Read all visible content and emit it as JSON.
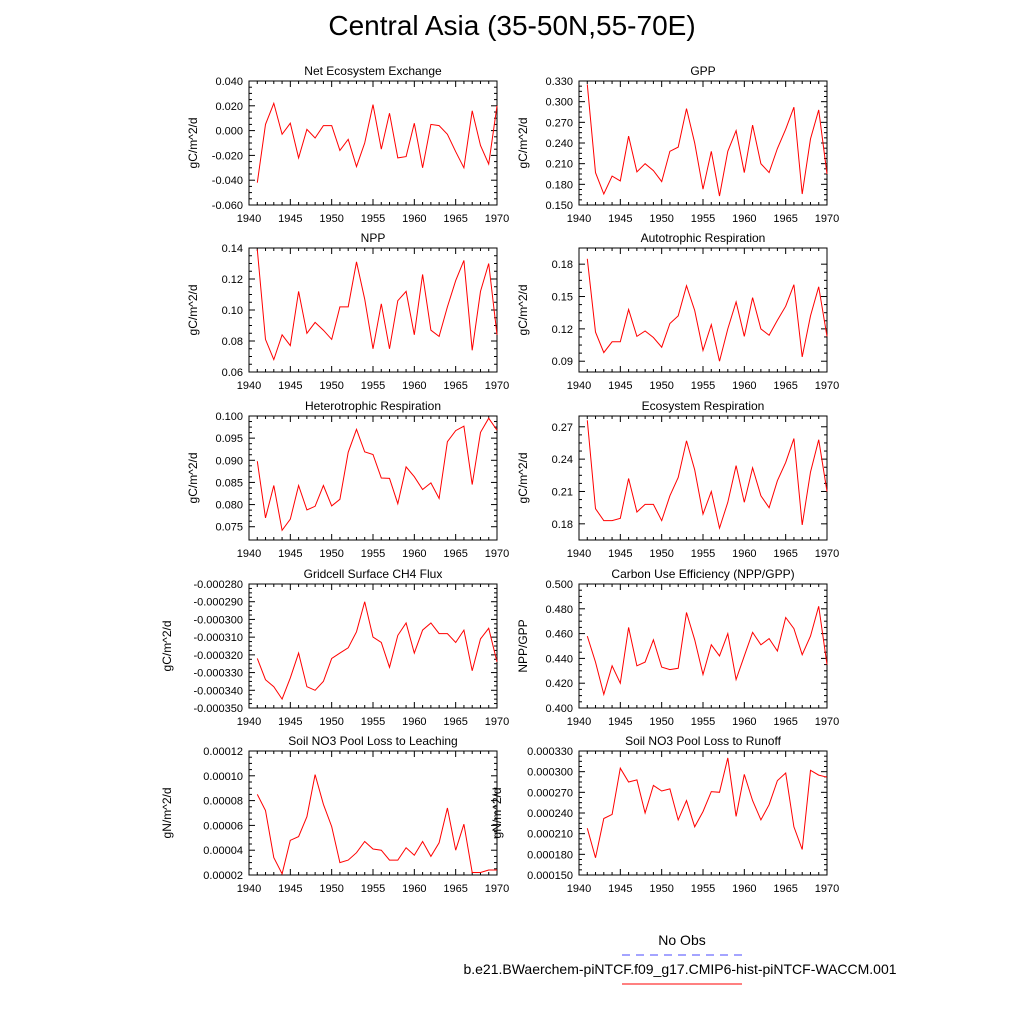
{
  "page_title": "Central Asia (35-50N,55-70E)",
  "legend": {
    "no_obs_label": "No Obs",
    "case_label": "b.e21.BWaerchem-piNTCF.f09_g17.CMIP6-hist-piNTCF-WACCM.001",
    "no_obs_color": "#4a4aff",
    "case_color": "#ff0000"
  },
  "chart_data": [
    {
      "type": "line",
      "title": "Net Ecosystem Exchange",
      "ylabel": "gC/m^2/d",
      "xlim": [
        1940,
        1970
      ],
      "ylim": [
        -0.06,
        0.04
      ],
      "xticks": [
        1940,
        1945,
        1950,
        1955,
        1960,
        1965,
        1970
      ],
      "yticks": [
        -0.06,
        -0.04,
        -0.02,
        0.0,
        0.02,
        0.04
      ],
      "ytick_labels": [
        "-0.060",
        "-0.040",
        "-0.020",
        "0.000",
        "0.020",
        "0.040"
      ],
      "series": [
        {
          "color": "#ff0000",
          "x": [
            1941,
            1942,
            1943,
            1944,
            1945,
            1946,
            1947,
            1948,
            1949,
            1950,
            1951,
            1952,
            1953,
            1954,
            1955,
            1956,
            1957,
            1958,
            1959,
            1960,
            1961,
            1962,
            1963,
            1964,
            1965,
            1966,
            1967,
            1968,
            1969,
            1970
          ],
          "y": [
            -0.042,
            0.005,
            0.022,
            -0.003,
            0.006,
            -0.022,
            0.001,
            -0.006,
            0.004,
            0.004,
            -0.016,
            -0.007,
            -0.029,
            -0.01,
            0.021,
            -0.015,
            0.014,
            -0.022,
            -0.021,
            0.006,
            -0.03,
            0.005,
            0.004,
            -0.003,
            -0.017,
            -0.03,
            0.016,
            -0.012,
            -0.027,
            0.02
          ]
        }
      ]
    },
    {
      "type": "line",
      "title": "GPP",
      "ylabel": "gC/m^2/d",
      "xlim": [
        1940,
        1970
      ],
      "ylim": [
        0.15,
        0.33
      ],
      "xticks": [
        1940,
        1945,
        1950,
        1955,
        1960,
        1965,
        1970
      ],
      "yticks": [
        0.15,
        0.18,
        0.21,
        0.24,
        0.27,
        0.3,
        0.33
      ],
      "ytick_labels": [
        "0.150",
        "0.180",
        "0.210",
        "0.240",
        "0.270",
        "0.300",
        "0.330"
      ],
      "series": [
        {
          "color": "#ff0000",
          "x": [
            1941,
            1942,
            1943,
            1944,
            1945,
            1946,
            1947,
            1948,
            1949,
            1950,
            1951,
            1952,
            1953,
            1954,
            1955,
            1956,
            1957,
            1958,
            1959,
            1960,
            1961,
            1962,
            1963,
            1964,
            1965,
            1966,
            1967,
            1968,
            1969,
            1970
          ],
          "y": [
            0.325,
            0.197,
            0.166,
            0.192,
            0.185,
            0.25,
            0.198,
            0.21,
            0.2,
            0.184,
            0.228,
            0.234,
            0.29,
            0.24,
            0.173,
            0.228,
            0.163,
            0.228,
            0.258,
            0.197,
            0.266,
            0.21,
            0.197,
            0.232,
            0.26,
            0.292,
            0.166,
            0.246,
            0.288,
            0.195
          ]
        }
      ]
    },
    {
      "type": "line",
      "title": "NPP",
      "ylabel": "gC/m^2/d",
      "xlim": [
        1940,
        1970
      ],
      "ylim": [
        0.06,
        0.14
      ],
      "xticks": [
        1940,
        1945,
        1950,
        1955,
        1960,
        1965,
        1970
      ],
      "yticks": [
        0.06,
        0.08,
        0.1,
        0.12,
        0.14
      ],
      "ytick_labels": [
        "0.06",
        "0.08",
        "0.10",
        "0.12",
        "0.14"
      ],
      "series": [
        {
          "color": "#ff0000",
          "x": [
            1941,
            1942,
            1943,
            1944,
            1945,
            1946,
            1947,
            1948,
            1949,
            1950,
            1951,
            1952,
            1953,
            1954,
            1955,
            1956,
            1957,
            1958,
            1959,
            1960,
            1961,
            1962,
            1963,
            1964,
            1965,
            1966,
            1967,
            1968,
            1969,
            1970
          ],
          "y": [
            0.139,
            0.081,
            0.068,
            0.084,
            0.077,
            0.112,
            0.085,
            0.092,
            0.087,
            0.081,
            0.102,
            0.102,
            0.131,
            0.107,
            0.075,
            0.104,
            0.075,
            0.106,
            0.112,
            0.084,
            0.123,
            0.087,
            0.083,
            0.102,
            0.119,
            0.132,
            0.074,
            0.112,
            0.13,
            0.084
          ]
        }
      ]
    },
    {
      "type": "line",
      "title": "Autotrophic Respiration",
      "ylabel": "gC/m^2/d",
      "xlim": [
        1940,
        1970
      ],
      "ylim": [
        0.08,
        0.195
      ],
      "xticks": [
        1940,
        1945,
        1950,
        1955,
        1960,
        1965,
        1970
      ],
      "yticks": [
        0.09,
        0.12,
        0.15,
        0.18
      ],
      "ytick_labels": [
        "0.09",
        "0.12",
        "0.15",
        "0.18"
      ],
      "series": [
        {
          "color": "#ff0000",
          "x": [
            1941,
            1942,
            1943,
            1944,
            1945,
            1946,
            1947,
            1948,
            1949,
            1950,
            1951,
            1952,
            1953,
            1954,
            1955,
            1956,
            1957,
            1958,
            1959,
            1960,
            1961,
            1962,
            1963,
            1964,
            1965,
            1966,
            1967,
            1968,
            1969,
            1970
          ],
          "y": [
            0.185,
            0.117,
            0.098,
            0.108,
            0.108,
            0.138,
            0.113,
            0.118,
            0.112,
            0.103,
            0.125,
            0.132,
            0.16,
            0.137,
            0.1,
            0.124,
            0.09,
            0.12,
            0.145,
            0.113,
            0.149,
            0.12,
            0.114,
            0.128,
            0.141,
            0.161,
            0.094,
            0.132,
            0.159,
            0.113
          ]
        }
      ]
    },
    {
      "type": "line",
      "title": "Heterotrophic Respiration",
      "ylabel": "gC/m^2/d",
      "xlim": [
        1940,
        1970
      ],
      "ylim": [
        0.072,
        0.1
      ],
      "xticks": [
        1940,
        1945,
        1950,
        1955,
        1960,
        1965,
        1970
      ],
      "yticks": [
        0.075,
        0.08,
        0.085,
        0.09,
        0.095,
        0.1
      ],
      "ytick_labels": [
        "0.075",
        "0.080",
        "0.085",
        "0.090",
        "0.095",
        "0.100"
      ],
      "series": [
        {
          "color": "#ff0000",
          "x": [
            1941,
            1942,
            1943,
            1944,
            1945,
            1946,
            1947,
            1948,
            1949,
            1950,
            1951,
            1952,
            1953,
            1954,
            1955,
            1956,
            1957,
            1958,
            1959,
            1960,
            1961,
            1962,
            1963,
            1964,
            1965,
            1966,
            1967,
            1968,
            1969,
            1970
          ],
          "y": [
            0.0898,
            0.077,
            0.0843,
            0.0742,
            0.0767,
            0.0843,
            0.0788,
            0.0796,
            0.0843,
            0.0797,
            0.0812,
            0.0918,
            0.097,
            0.0919,
            0.0913,
            0.086,
            0.0859,
            0.0802,
            0.0885,
            0.0863,
            0.0834,
            0.0849,
            0.0814,
            0.0942,
            0.0967,
            0.0977,
            0.0845,
            0.0963,
            0.0995,
            0.0968
          ]
        }
      ]
    },
    {
      "type": "line",
      "title": "Ecosystem Respiration",
      "ylabel": "gC/m^2/d",
      "xlim": [
        1940,
        1970
      ],
      "ylim": [
        0.165,
        0.28
      ],
      "xticks": [
        1940,
        1945,
        1950,
        1955,
        1960,
        1965,
        1970
      ],
      "yticks": [
        0.18,
        0.21,
        0.24,
        0.27
      ],
      "ytick_labels": [
        "0.18",
        "0.21",
        "0.24",
        "0.27"
      ],
      "series": [
        {
          "color": "#ff0000",
          "x": [
            1941,
            1942,
            1943,
            1944,
            1945,
            1946,
            1947,
            1948,
            1949,
            1950,
            1951,
            1952,
            1953,
            1954,
            1955,
            1956,
            1957,
            1958,
            1959,
            1960,
            1961,
            1962,
            1963,
            1964,
            1965,
            1966,
            1967,
            1968,
            1969,
            1970
          ],
          "y": [
            0.276,
            0.194,
            0.183,
            0.183,
            0.185,
            0.222,
            0.191,
            0.198,
            0.198,
            0.183,
            0.206,
            0.223,
            0.257,
            0.23,
            0.189,
            0.21,
            0.176,
            0.2,
            0.234,
            0.2,
            0.232,
            0.206,
            0.195,
            0.22,
            0.237,
            0.259,
            0.179,
            0.228,
            0.258,
            0.21
          ]
        }
      ]
    },
    {
      "type": "line",
      "title": "Gridcell Surface CH4 Flux",
      "ylabel": "gC/m^2/d",
      "xlim": [
        1940,
        1970
      ],
      "ylim": [
        -0.00035,
        -0.00028
      ],
      "xticks": [
        1940,
        1945,
        1950,
        1955,
        1960,
        1965,
        1970
      ],
      "yticks": [
        -0.00035,
        -0.00034,
        -0.00033,
        -0.00032,
        -0.00031,
        -0.0003,
        -0.00029,
        -0.00028
      ],
      "ytick_labels": [
        "-0.000350",
        "-0.000340",
        "-0.000330",
        "-0.000320",
        "-0.000310",
        "-0.000300",
        "-0.000290",
        "-0.000280"
      ],
      "series": [
        {
          "color": "#ff0000",
          "x": [
            1941,
            1942,
            1943,
            1944,
            1945,
            1946,
            1947,
            1948,
            1949,
            1950,
            1951,
            1952,
            1953,
            1954,
            1955,
            1956,
            1957,
            1958,
            1959,
            1960,
            1961,
            1962,
            1963,
            1964,
            1965,
            1966,
            1967,
            1968,
            1969,
            1970
          ],
          "y": [
            -0.000322,
            -0.000334,
            -0.000338,
            -0.000345,
            -0.000333,
            -0.000319,
            -0.000338,
            -0.00034,
            -0.000335,
            -0.000322,
            -0.000319,
            -0.000316,
            -0.000307,
            -0.00029,
            -0.00031,
            -0.000313,
            -0.000327,
            -0.000309,
            -0.000302,
            -0.000319,
            -0.000306,
            -0.000302,
            -0.000308,
            -0.000308,
            -0.000313,
            -0.000306,
            -0.000329,
            -0.000311,
            -0.000305,
            -0.000324
          ]
        }
      ]
    },
    {
      "type": "line",
      "title": "Carbon Use Efficiency (NPP/GPP)",
      "ylabel": "NPP/GPP",
      "xlim": [
        1940,
        1970
      ],
      "ylim": [
        0.4,
        0.5
      ],
      "xticks": [
        1940,
        1945,
        1950,
        1955,
        1960,
        1965,
        1970
      ],
      "yticks": [
        0.4,
        0.42,
        0.44,
        0.46,
        0.48,
        0.5
      ],
      "ytick_labels": [
        "0.400",
        "0.420",
        "0.440",
        "0.460",
        "0.480",
        "0.500"
      ],
      "series": [
        {
          "color": "#ff0000",
          "x": [
            1941,
            1942,
            1943,
            1944,
            1945,
            1946,
            1947,
            1948,
            1949,
            1950,
            1951,
            1952,
            1953,
            1954,
            1955,
            1956,
            1957,
            1958,
            1959,
            1960,
            1961,
            1962,
            1963,
            1964,
            1965,
            1966,
            1967,
            1968,
            1969,
            1970
          ],
          "y": [
            0.458,
            0.437,
            0.411,
            0.434,
            0.42,
            0.465,
            0.434,
            0.437,
            0.455,
            0.433,
            0.431,
            0.432,
            0.477,
            0.455,
            0.427,
            0.451,
            0.442,
            0.46,
            0.423,
            0.442,
            0.461,
            0.451,
            0.456,
            0.446,
            0.473,
            0.464,
            0.443,
            0.458,
            0.482,
            0.435
          ]
        }
      ]
    },
    {
      "type": "line",
      "title": "Soil NO3 Pool Loss to Leaching",
      "ylabel": "gN/m^2/d",
      "xlim": [
        1940,
        1970
      ],
      "ylim": [
        2e-05,
        0.00012
      ],
      "xticks": [
        1940,
        1945,
        1950,
        1955,
        1960,
        1965,
        1970
      ],
      "yticks": [
        2e-05,
        4e-05,
        6e-05,
        8e-05,
        0.0001,
        0.00012
      ],
      "ytick_labels": [
        "0.00002",
        "0.00004",
        "0.00006",
        "0.00008",
        "0.00010",
        "0.00012"
      ],
      "series": [
        {
          "color": "#ff0000",
          "x": [
            1941,
            1942,
            1943,
            1944,
            1945,
            1946,
            1947,
            1948,
            1949,
            1950,
            1951,
            1952,
            1953,
            1954,
            1955,
            1956,
            1957,
            1958,
            1959,
            1960,
            1961,
            1962,
            1963,
            1964,
            1965,
            1966,
            1967,
            1968,
            1969,
            1970
          ],
          "y": [
            8.5e-05,
            7.2e-05,
            3.4e-05,
            2.1e-05,
            4.8e-05,
            5.1e-05,
            6.7e-05,
            0.000101,
            7.7e-05,
            5.9e-05,
            3e-05,
            3.2e-05,
            3.8e-05,
            4.7e-05,
            4.1e-05,
            4e-05,
            3.2e-05,
            3.2e-05,
            4.2e-05,
            3.6e-05,
            4.7e-05,
            3.5e-05,
            4.6e-05,
            7.4e-05,
            4e-05,
            6.1e-05,
            2.2e-05,
            2.2e-05,
            2.4e-05,
            2.4e-05
          ]
        }
      ]
    },
    {
      "type": "line",
      "title": "Soil NO3 Pool Loss to Runoff",
      "ylabel": "gN/m^2/d",
      "xlim": [
        1940,
        1970
      ],
      "ylim": [
        0.00015,
        0.00033
      ],
      "xticks": [
        1940,
        1945,
        1950,
        1955,
        1960,
        1965,
        1970
      ],
      "yticks": [
        0.00015,
        0.00018,
        0.00021,
        0.00024,
        0.00027,
        0.0003,
        0.00033
      ],
      "ytick_labels": [
        "0.000150",
        "0.000180",
        "0.000210",
        "0.000240",
        "0.000270",
        "0.000300",
        "0.000330"
      ],
      "series": [
        {
          "color": "#ff0000",
          "x": [
            1941,
            1942,
            1943,
            1944,
            1945,
            1946,
            1947,
            1948,
            1949,
            1950,
            1951,
            1952,
            1953,
            1954,
            1955,
            1956,
            1957,
            1958,
            1959,
            1960,
            1961,
            1962,
            1963,
            1964,
            1965,
            1966,
            1967,
            1968,
            1969,
            1970
          ],
          "y": [
            0.000218,
            0.000175,
            0.000232,
            0.000238,
            0.000305,
            0.000285,
            0.000288,
            0.00024,
            0.00028,
            0.000272,
            0.000275,
            0.00023,
            0.000258,
            0.00022,
            0.000242,
            0.000271,
            0.00027,
            0.00032,
            0.000235,
            0.000296,
            0.000258,
            0.00023,
            0.000252,
            0.000287,
            0.000298,
            0.00022,
            0.000187,
            0.000302,
            0.000295,
            0.000292
          ]
        }
      ]
    }
  ]
}
